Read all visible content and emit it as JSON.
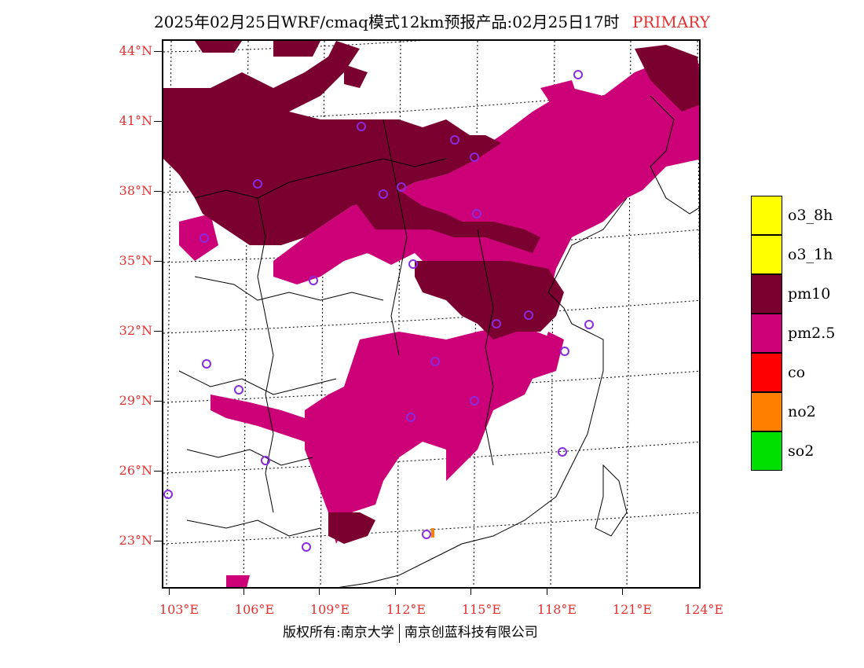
{
  "title": {
    "main": "2025年02月25日WRF/cmaq模式12km预报产品:02月25日17时",
    "tag": "PRIMARY"
  },
  "axes": {
    "lat_labels": [
      "44°N",
      "41°N",
      "38°N",
      "35°N",
      "32°N",
      "29°N",
      "26°N",
      "23°N"
    ],
    "lon_labels": [
      "103°E",
      "106°E",
      "109°E",
      "112°E",
      "115°E",
      "118°E",
      "121°E",
      "124°E"
    ]
  },
  "legend": [
    {
      "label": "o3_8h",
      "color": "#ffff00"
    },
    {
      "label": "o3_1h",
      "color": "#ffff00"
    },
    {
      "label": "pm10",
      "color": "#7a0030"
    },
    {
      "label": "pm2.5",
      "color": "#cc0077"
    },
    {
      "label": "co",
      "color": "#ff0000"
    },
    {
      "label": "no2",
      "color": "#ff7f00"
    },
    {
      "label": "so2",
      "color": "#00e000"
    }
  ],
  "footer": {
    "left": "版权所有:南京大学",
    "right": "南京创蓝科技有限公司"
  }
}
